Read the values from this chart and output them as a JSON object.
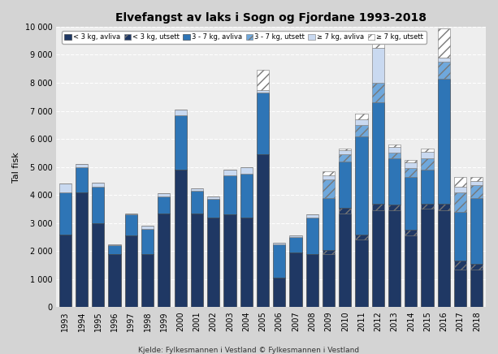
{
  "title": "Elvefangst av laks i Sogn og Fjordane 1993-2018",
  "ylabel": "Tal fisk",
  "source": "Kjelde: Fylkesmannen i Vestland © Fylkesmannen i Vestland",
  "years": [
    1993,
    1994,
    1995,
    1996,
    1997,
    1998,
    1999,
    2000,
    2001,
    2002,
    2003,
    2004,
    2005,
    2006,
    2007,
    2008,
    2009,
    2010,
    2011,
    2012,
    2013,
    2014,
    2015,
    2016,
    2017,
    2018
  ],
  "legend_labels": [
    "< 3 kg, avliva",
    "< 3 kg, utsett",
    "3 - 7 kg, avliva",
    "3 - 7 kg, utsett",
    "≥ 7 kg, avliva",
    "≥ 7 kg, utsett"
  ],
  "c_lt3_av": "#1f3864",
  "c_lt3_ut": "#1f3864",
  "c_37_av": "#2e75b6",
  "c_37_ut": "#6fa8dc",
  "c_gt7_av": "#c9d9f0",
  "c_gt7_ut": "#ffffff",
  "s_lt3_avliva": [
    2600,
    4100,
    3000,
    1900,
    2550,
    1900,
    3350,
    4900,
    3350,
    3200,
    3300,
    3200,
    5450,
    1050,
    1950,
    1900,
    1900,
    3350,
    2400,
    3450,
    3450,
    2550,
    3500,
    3450,
    1350,
    1350
  ],
  "s_lt3_utsett": [
    0,
    0,
    0,
    0,
    0,
    0,
    0,
    0,
    0,
    0,
    0,
    0,
    0,
    0,
    0,
    0,
    150,
    200,
    200,
    250,
    200,
    200,
    200,
    250,
    300,
    200
  ],
  "s_37_avliva": [
    1500,
    900,
    1300,
    300,
    750,
    900,
    600,
    1950,
    800,
    650,
    1400,
    1550,
    2200,
    1200,
    550,
    1300,
    1850,
    1650,
    3500,
    3600,
    1650,
    1900,
    1200,
    4450,
    1750,
    2350
  ],
  "s_37_utsett": [
    0,
    0,
    0,
    0,
    0,
    0,
    0,
    0,
    0,
    0,
    0,
    0,
    0,
    0,
    0,
    0,
    650,
    250,
    400,
    700,
    200,
    300,
    400,
    600,
    700,
    450
  ],
  "s_gt7_avliva": [
    300,
    100,
    150,
    50,
    50,
    100,
    100,
    200,
    100,
    100,
    200,
    250,
    100,
    50,
    50,
    100,
    150,
    150,
    200,
    1250,
    200,
    200,
    250,
    150,
    200,
    150
  ],
  "s_gt7_utsett": [
    0,
    0,
    0,
    0,
    0,
    0,
    0,
    0,
    0,
    0,
    0,
    0,
    700,
    0,
    0,
    0,
    150,
    50,
    200,
    400,
    100,
    100,
    100,
    1050,
    350,
    150
  ],
  "ylim": [
    0,
    10000
  ],
  "yticks": [
    0,
    1000,
    2000,
    3000,
    4000,
    5000,
    6000,
    7000,
    8000,
    9000,
    10000
  ],
  "yticklabels": [
    "0",
    "1 000",
    "2 000",
    "3 000",
    "4 000",
    "5 000",
    "6 000",
    "7 000",
    "8 000",
    "9 000",
    "10 000"
  ],
  "bg_color": "#d4d4d4",
  "plot_bg_color": "#eeeeee"
}
